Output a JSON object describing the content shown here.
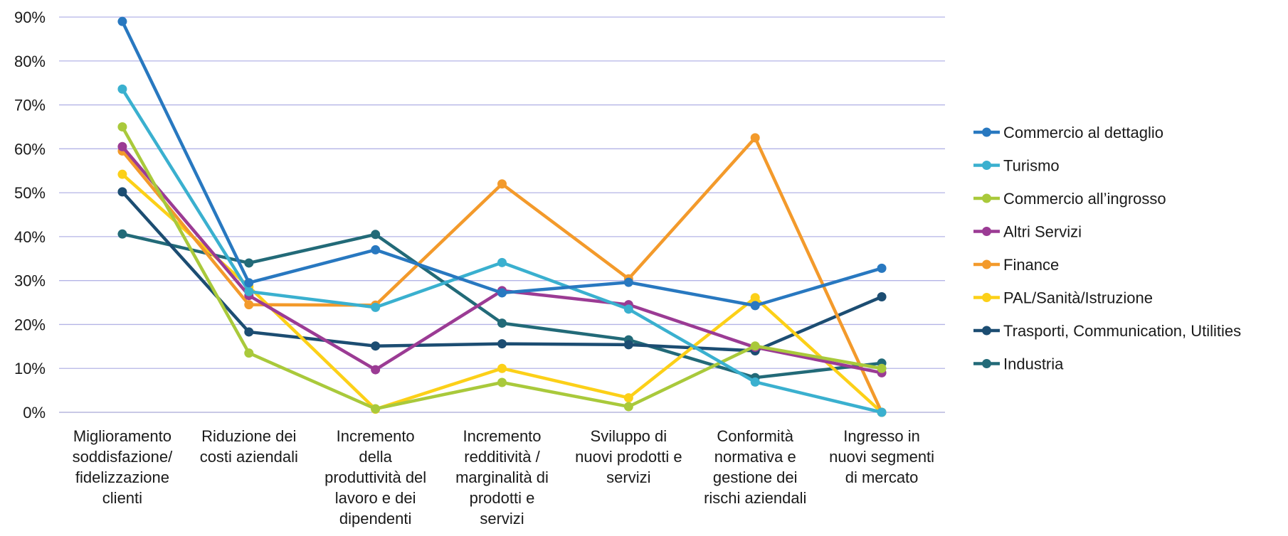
{
  "chart_data": {
    "type": "line",
    "title": "",
    "xlabel": "",
    "ylabel": "",
    "ylim": [
      0,
      90
    ],
    "y_ticks": [
      "0%",
      "10%",
      "20%",
      "30%",
      "40%",
      "50%",
      "60%",
      "70%",
      "80%",
      "90%"
    ],
    "grid": true,
    "legend_position": "right",
    "categories": [
      [
        "Miglioramento",
        "soddisfazione/",
        "fidelizzazione",
        "clienti"
      ],
      [
        "Riduzione dei",
        "costi aziendali"
      ],
      [
        "Incremento",
        "della",
        "produttività del",
        "lavoro e dei",
        "dipendenti"
      ],
      [
        "Incremento",
        "redditività /",
        "marginalità di",
        "prodotti e",
        "servizi"
      ],
      [
        "Sviluppo di",
        "nuovi prodotti e",
        "servizi"
      ],
      [
        "Conformità",
        "normativa e",
        "gestione dei",
        "rischi aziendali"
      ],
      [
        "Ingresso in",
        "nuovi segmenti",
        "di mercato"
      ]
    ],
    "series": [
      {
        "name": "Commercio al dettaglio",
        "color": "#2878c0",
        "values": [
          89,
          29.5,
          37,
          27.2,
          29.6,
          24.3,
          32.8
        ]
      },
      {
        "name": "Turismo",
        "color": "#3ab0cf",
        "values": [
          73.6,
          27.5,
          23.9,
          34.1,
          23.5,
          6.9,
          0
        ]
      },
      {
        "name": "Commercio all’ingrosso",
        "color": "#a9c93b",
        "values": [
          65,
          13.5,
          0.8,
          6.8,
          1.3,
          15.1,
          10
        ]
      },
      {
        "name": "Altri Servizi",
        "color": "#9b3b94",
        "values": [
          60.5,
          26.6,
          9.7,
          27.7,
          24.5,
          14.8,
          9
        ]
      },
      {
        "name": " Finance",
        "color": "#f39a2b",
        "values": [
          59.5,
          24.5,
          24.4,
          52,
          30.4,
          62.5,
          0
        ]
      },
      {
        "name": "PAL/Sanità/Istruzione",
        "color": "#fcd018",
        "values": [
          54.2,
          28.6,
          0.7,
          10,
          3.3,
          26.1,
          0
        ]
      },
      {
        "name": "Trasporti, Communication, Utilities",
        "color": "#1c4d72",
        "values": [
          50.2,
          18.3,
          15.1,
          15.6,
          15.4,
          14,
          26.3
        ]
      },
      {
        "name": "Industria",
        "color": "#226a78",
        "values": [
          40.6,
          34,
          40.5,
          20.3,
          16.5,
          7.9,
          11.2
        ]
      }
    ]
  }
}
